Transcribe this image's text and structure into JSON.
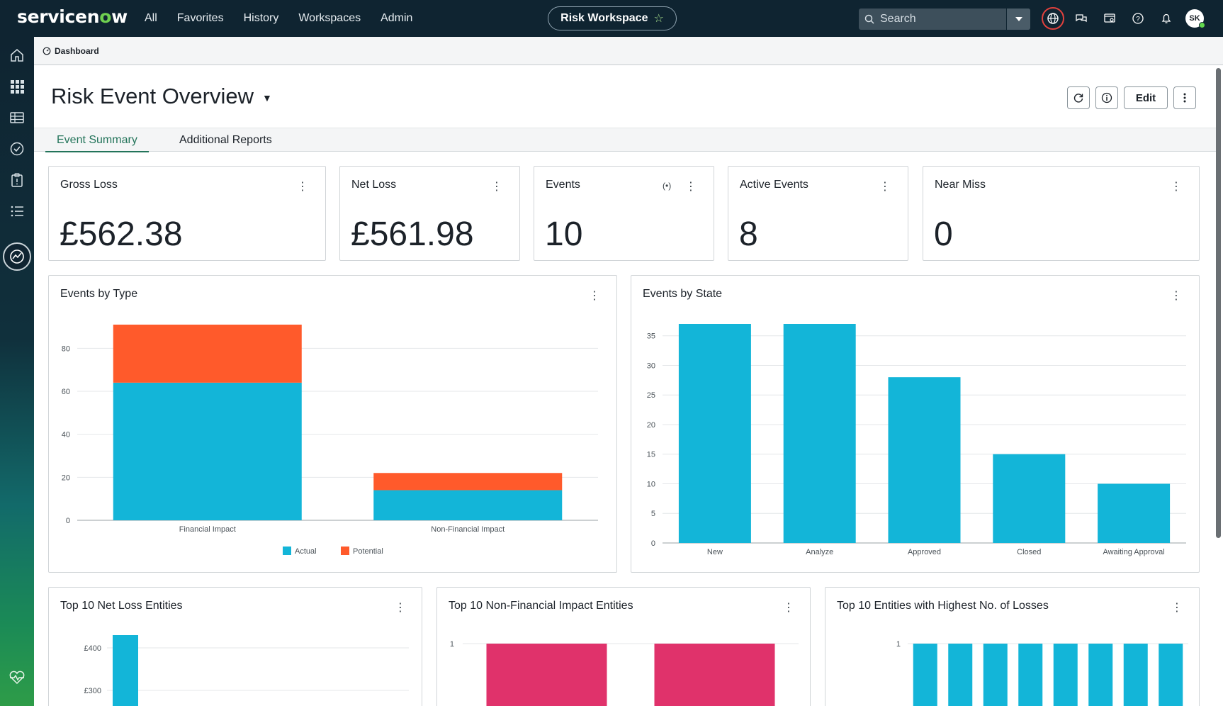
{
  "topnav": {
    "logo_text": "servicenow",
    "menu": [
      "All",
      "Favorites",
      "History",
      "Workspaces",
      "Admin"
    ],
    "workspace": "Risk Workspace",
    "search_placeholder": "Search",
    "avatar_initials": "SK"
  },
  "breadcrumb": "Dashboard",
  "page_title": "Risk Event Overview",
  "edit_label": "Edit",
  "tabs": [
    "Event Summary",
    "Additional Reports"
  ],
  "kpis": [
    {
      "label": "Gross Loss",
      "value": "£562.38"
    },
    {
      "label": "Net Loss",
      "value": "£561.98"
    },
    {
      "label": "Events",
      "value": "10"
    },
    {
      "label": "Active Events",
      "value": "8"
    },
    {
      "label": "Near Miss",
      "value": "0"
    }
  ],
  "widgets": {
    "events_by_type": {
      "title": "Events by Type"
    },
    "events_by_state": {
      "title": "Events by State"
    },
    "top_net_loss": {
      "title": "Top 10 Net Loss Entities"
    },
    "top_non_financial": {
      "title": "Top 10 Non-Financial Impact Entities"
    },
    "top_losses": {
      "title": "Top 10 Entities with Highest No. of Losses"
    }
  },
  "colors": {
    "cyan": "#13b5d8",
    "orange": "#ff5a2b",
    "pink": "#e0326b",
    "brand_green": "#62d84e"
  },
  "chart_data": [
    {
      "type": "bar",
      "stacked": true,
      "categories": [
        "Financial Impact",
        "Non-Financial Impact"
      ],
      "series": [
        {
          "name": "Actual",
          "values": [
            64,
            14
          ]
        },
        {
          "name": "Potential",
          "values": [
            27,
            8
          ]
        }
      ],
      "yticks": [
        0,
        20,
        40,
        60,
        80
      ],
      "ylim": [
        0,
        90
      ],
      "legend": "bottom"
    },
    {
      "type": "bar",
      "categories": [
        "New",
        "Analyze",
        "Approved",
        "Closed",
        "Awaiting Approval"
      ],
      "values": [
        37,
        37,
        28,
        15,
        10
      ],
      "yticks": [
        0,
        5,
        10,
        15,
        20,
        25,
        30,
        35
      ],
      "ylim": [
        0,
        37
      ]
    },
    {
      "type": "bar",
      "yticks_labels": [
        "£400",
        "£300"
      ],
      "values": [
        430
      ]
    },
    {
      "type": "bar",
      "yticks_labels": [
        "1"
      ],
      "values": [
        1,
        1
      ]
    },
    {
      "type": "bar",
      "yticks_labels": [
        "1"
      ],
      "values": [
        1,
        1,
        1,
        1,
        1,
        1,
        1,
        1
      ]
    }
  ]
}
